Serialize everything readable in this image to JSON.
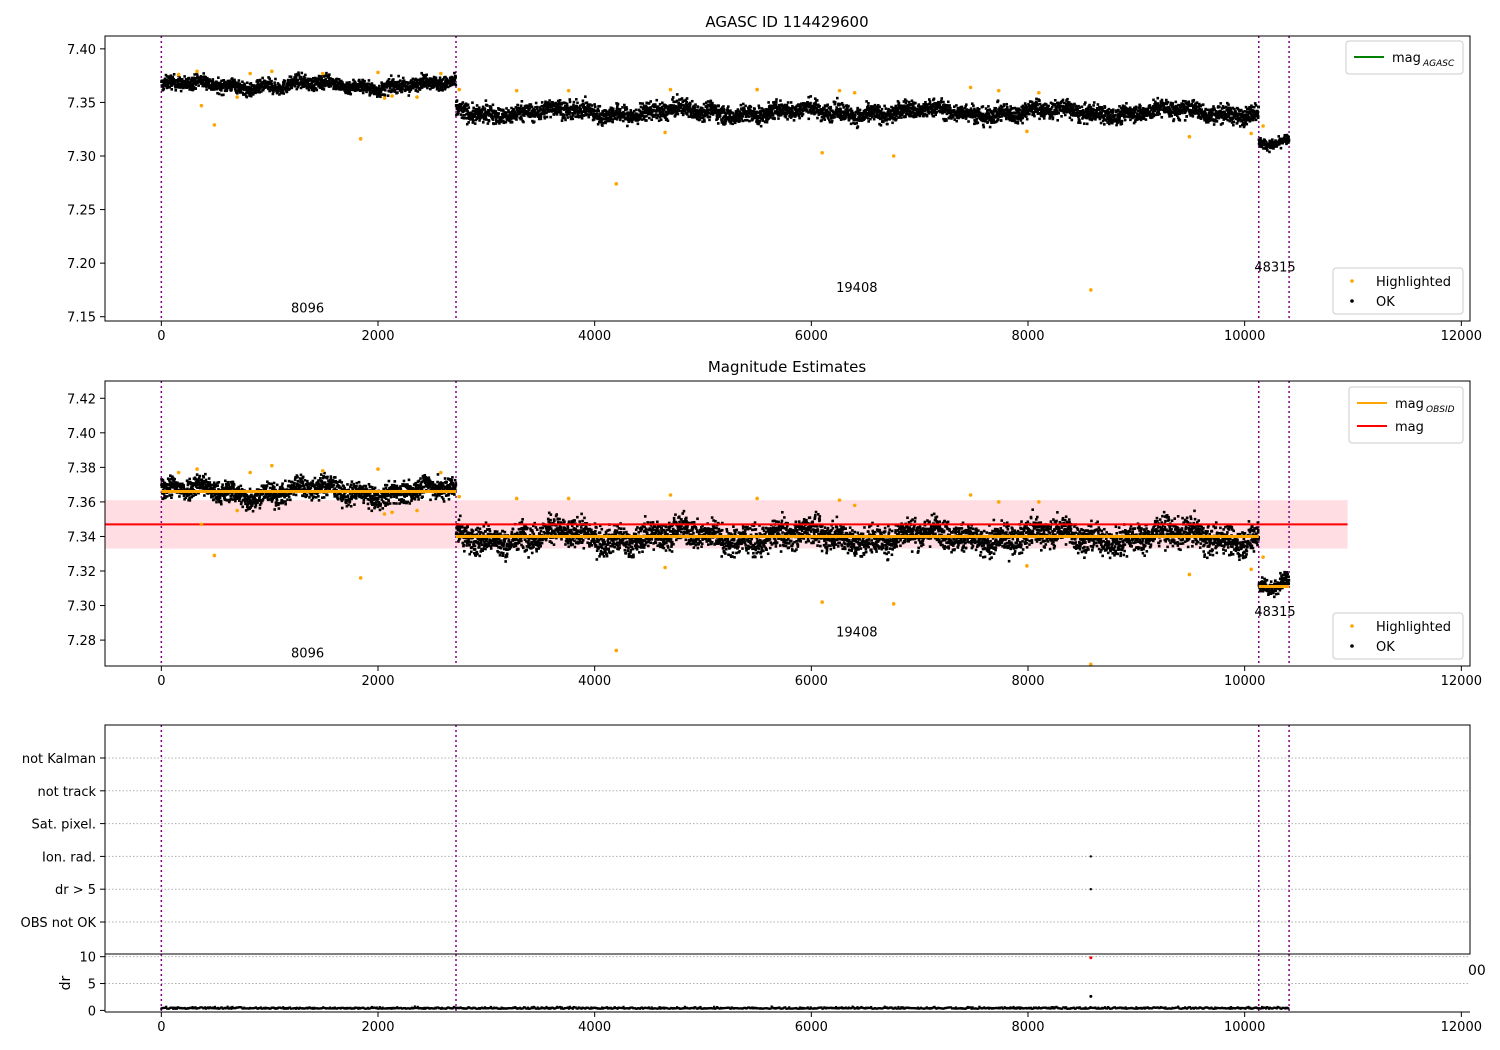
{
  "chart_data": [
    {
      "type": "scatter",
      "title": "AGASC ID 114429600",
      "xlim": [
        -520,
        12080
      ],
      "ylim": [
        7.146,
        7.412
      ],
      "xticks": [
        0,
        2000,
        4000,
        6000,
        8000,
        10000,
        12000
      ],
      "yticks": [
        7.15,
        7.2,
        7.25,
        7.3,
        7.35,
        7.4
      ],
      "vlines": [
        0,
        2720,
        10130,
        10410
      ],
      "segments": [
        {
          "x": [
            0,
            2720
          ],
          "mean": 7.366,
          "spread": 0.007
        },
        {
          "x": [
            2720,
            10130
          ],
          "mean": 7.341,
          "spread": 0.009
        },
        {
          "x": [
            10130,
            10410
          ],
          "mean": 7.311,
          "spread": 0.005
        }
      ],
      "obsid_labels": [
        {
          "text": "8096",
          "x": 1350,
          "y": 7.154
        },
        {
          "text": "19408",
          "x": 6420,
          "y": 7.173
        },
        {
          "text": "48315",
          "x": 10280,
          "y": 7.192
        }
      ],
      "highlighted": [
        [
          160,
          7.376
        ],
        [
          330,
          7.379
        ],
        [
          370,
          7.347
        ],
        [
          490,
          7.329
        ],
        [
          700,
          7.355
        ],
        [
          820,
          7.377
        ],
        [
          1020,
          7.379
        ],
        [
          1490,
          7.377
        ],
        [
          1840,
          7.316
        ],
        [
          2000,
          7.378
        ],
        [
          2060,
          7.354
        ],
        [
          2130,
          7.356
        ],
        [
          2360,
          7.355
        ],
        [
          2580,
          7.377
        ],
        [
          2750,
          7.362
        ],
        [
          3280,
          7.361
        ],
        [
          3760,
          7.361
        ],
        [
          4200,
          7.274
        ],
        [
          4650,
          7.322
        ],
        [
          4700,
          7.362
        ],
        [
          5500,
          7.362
        ],
        [
          6100,
          7.303
        ],
        [
          6260,
          7.361
        ],
        [
          6400,
          7.359
        ],
        [
          6760,
          7.3
        ],
        [
          7470,
          7.364
        ],
        [
          7730,
          7.361
        ],
        [
          7990,
          7.323
        ],
        [
          8100,
          7.359
        ],
        [
          8580,
          7.175
        ],
        [
          9490,
          7.318
        ],
        [
          10060,
          7.321
        ],
        [
          10170,
          7.328
        ]
      ],
      "legend_lines": [
        {
          "label": "mag",
          "sub": "AGASC",
          "color": "#008000"
        }
      ],
      "legend_points": [
        {
          "label": "Highlighted",
          "color": "#ffa500"
        },
        {
          "label": "OK",
          "color": "#000000"
        }
      ]
    },
    {
      "type": "scatter",
      "title": "Magnitude Estimates",
      "xlim": [
        -520,
        12080
      ],
      "ylim": [
        7.265,
        7.43
      ],
      "xticks": [
        0,
        2000,
        4000,
        6000,
        8000,
        10000,
        12000
      ],
      "yticks": [
        7.28,
        7.3,
        7.32,
        7.34,
        7.36,
        7.38,
        7.4,
        7.42
      ],
      "vlines": [
        0,
        2720,
        10130,
        10410
      ],
      "mag": 7.347,
      "mag_band": [
        7.333,
        7.361
      ],
      "mag_x": [
        -520,
        10950
      ],
      "segments": [
        {
          "x": [
            0,
            2720
          ],
          "mean": 7.366,
          "spread": 0.007
        },
        {
          "x": [
            2720,
            10130
          ],
          "mean": 7.34,
          "spread": 0.009
        },
        {
          "x": [
            10130,
            10410
          ],
          "mean": 7.311,
          "spread": 0.005
        }
      ],
      "obsid_labels": [
        {
          "text": "8096",
          "x": 1350,
          "y": 7.27
        },
        {
          "text": "19408",
          "x": 6420,
          "y": 7.282
        },
        {
          "text": "48315",
          "x": 10280,
          "y": 7.294
        }
      ],
      "highlighted": [
        [
          160,
          7.377
        ],
        [
          330,
          7.379
        ],
        [
          370,
          7.347
        ],
        [
          490,
          7.329
        ],
        [
          700,
          7.355
        ],
        [
          820,
          7.377
        ],
        [
          1020,
          7.381
        ],
        [
          1490,
          7.378
        ],
        [
          1840,
          7.316
        ],
        [
          2000,
          7.379
        ],
        [
          2060,
          7.353
        ],
        [
          2130,
          7.354
        ],
        [
          2360,
          7.355
        ],
        [
          2580,
          7.377
        ],
        [
          2750,
          7.363
        ],
        [
          3280,
          7.362
        ],
        [
          3760,
          7.362
        ],
        [
          4200,
          7.274
        ],
        [
          4650,
          7.322
        ],
        [
          4700,
          7.364
        ],
        [
          5500,
          7.362
        ],
        [
          6100,
          7.302
        ],
        [
          6260,
          7.361
        ],
        [
          6400,
          7.358
        ],
        [
          6760,
          7.301
        ],
        [
          7470,
          7.364
        ],
        [
          7730,
          7.36
        ],
        [
          7990,
          7.323
        ],
        [
          8100,
          7.36
        ],
        [
          8580,
          7.266
        ],
        [
          9490,
          7.318
        ],
        [
          10060,
          7.321
        ],
        [
          10170,
          7.328
        ]
      ],
      "legend_lines": [
        {
          "label": "mag",
          "sub": "OBSID",
          "color": "#ffa500"
        },
        {
          "label": "mag",
          "sub": "",
          "color": "#ff0000"
        }
      ],
      "legend_points": [
        {
          "label": "Highlighted",
          "color": "#ffa500"
        },
        {
          "label": "OK",
          "color": "#000000"
        }
      ]
    },
    {
      "type": "scatter",
      "xlim": [
        -520,
        12080
      ],
      "vlines": [
        0,
        2720,
        10130,
        10410
      ],
      "flag_categories": [
        "not Kalman",
        "not track",
        "Sat. pixel.",
        "Ion. rad.",
        "dr > 5",
        "OBS not OK"
      ],
      "flag_points": [
        {
          "x": 8580,
          "category": "Ion. rad."
        },
        {
          "x": 8580,
          "category": "dr > 5"
        }
      ]
    },
    {
      "type": "scatter",
      "ylabel": "dr",
      "xlim": [
        -520,
        12080
      ],
      "ylim": [
        -0.3,
        10.5
      ],
      "xticks": [
        0,
        2000,
        4000,
        6000,
        8000,
        10000,
        12000
      ],
      "yticks": [
        0,
        5,
        10
      ],
      "vlines": [
        0,
        2720,
        10130,
        10410
      ],
      "baseline": 0.3,
      "extra_points": [
        {
          "x": 8580,
          "y": 9.8,
          "color": "#ff0000"
        },
        {
          "x": 8580,
          "y": 2.6,
          "color": "#000000"
        }
      ],
      "clipped_tick_label": "00"
    }
  ],
  "colors": {
    "ok": "#000000",
    "highlighted": "#ffa500",
    "agasc": "#008000",
    "mag": "#ff0000",
    "band": "#ffdde2",
    "vline": "#800080"
  }
}
